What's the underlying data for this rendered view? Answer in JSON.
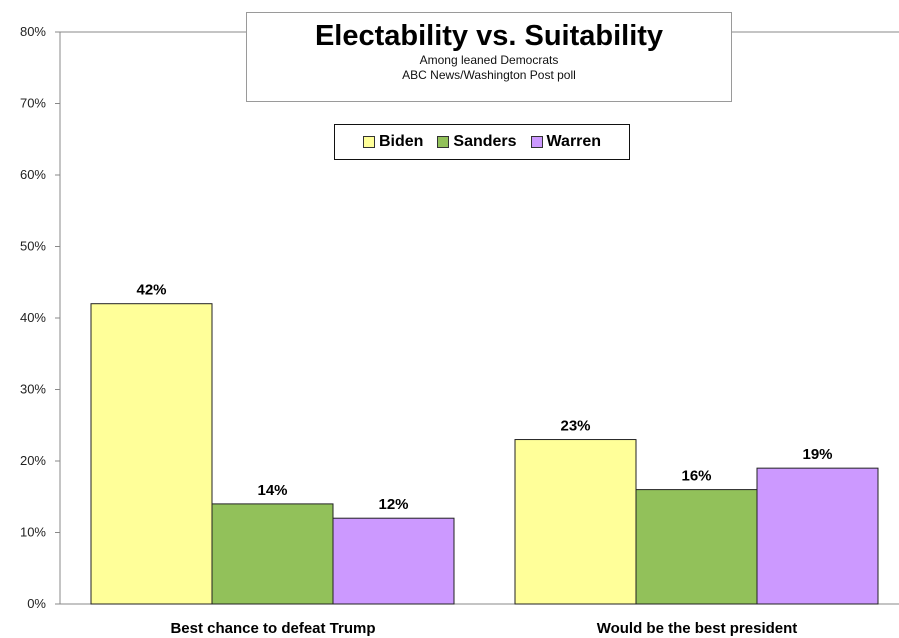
{
  "chart_data": {
    "type": "bar",
    "title": "Electability vs. Suitability",
    "subtitle_lines": [
      "Among leaned Democrats",
      "ABC News/Washington Post poll"
    ],
    "categories": [
      "Best chance to defeat Trump",
      "Would be the best president"
    ],
    "series": [
      {
        "name": "Biden",
        "values": [
          42,
          23
        ],
        "labels": [
          "42%",
          "23%"
        ],
        "color": "#ffff99"
      },
      {
        "name": "Sanders",
        "values": [
          14,
          16
        ],
        "labels": [
          "14%",
          "16%"
        ],
        "color": "#92c15a"
      },
      {
        "name": "Warren",
        "values": [
          12,
          19
        ],
        "labels": [
          "12%",
          "19%"
        ],
        "color": "#cc99ff"
      }
    ],
    "ylim": [
      0,
      80
    ],
    "y_ticks": [
      "0%",
      "10%",
      "20%",
      "30%",
      "40%",
      "50%",
      "60%",
      "70%",
      "80%"
    ],
    "y_tick_values": [
      0,
      10,
      20,
      30,
      40,
      50,
      60,
      70,
      80
    ],
    "xlabel": "",
    "ylabel": "",
    "legend_position": "top-center",
    "grid": false,
    "bar_border_color": "#222222"
  }
}
